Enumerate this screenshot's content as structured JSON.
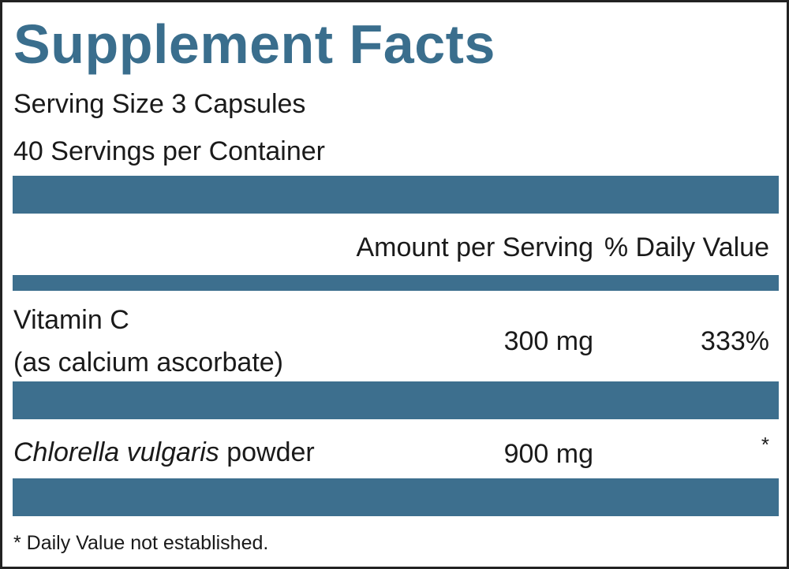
{
  "title": "Supplement Facts",
  "serving_size": "Serving Size 3 Capsules",
  "servings_per_container": "40 Servings per Container",
  "header": {
    "amount": "Amount per Serving",
    "daily_value": "% Daily Value"
  },
  "rows": [
    {
      "name": "Vitamin C",
      "name_note": "(as calcium ascorbate)",
      "amount": "300 mg",
      "daily_value": "333%"
    },
    {
      "name_italic": "Chlorella vulgaris",
      "name_suffix": " powder",
      "amount": "900 mg",
      "daily_value": "*"
    }
  ],
  "footnote": "* Daily Value not established."
}
